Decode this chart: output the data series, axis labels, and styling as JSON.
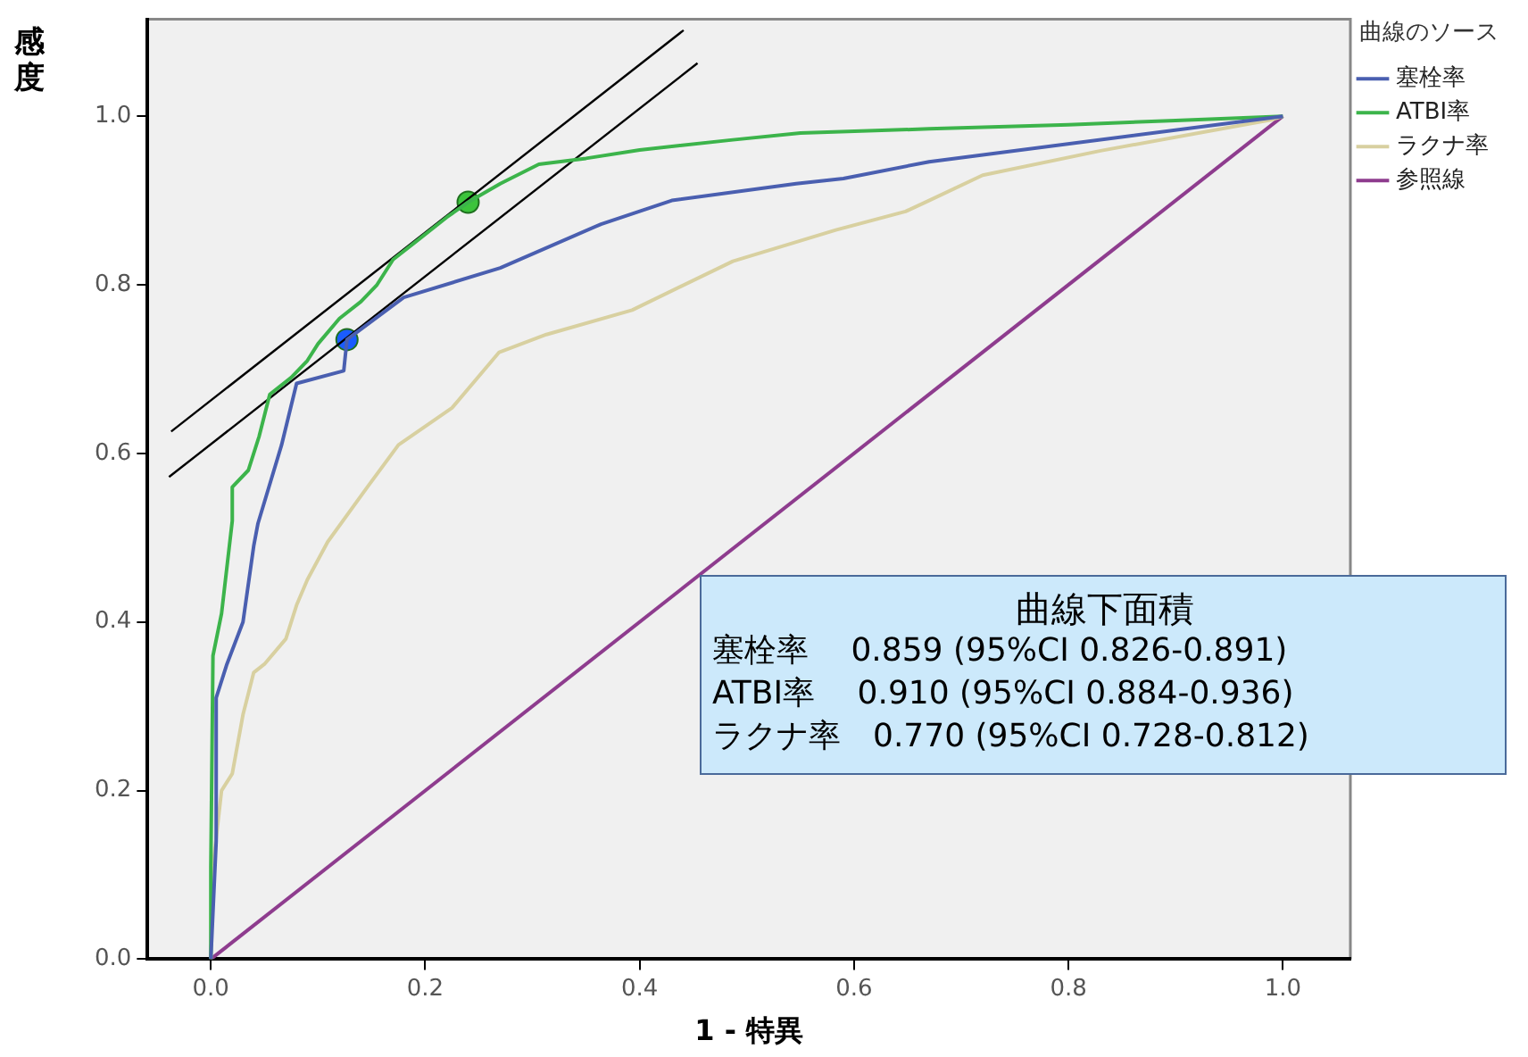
{
  "chart_data": {
    "type": "line",
    "xlabel": "1 - 特異",
    "ylabel": "感度",
    "legend_title": "曲線のソース",
    "legend": "top right",
    "marker": "none",
    "grid": false,
    "xlim": [
      -0.059,
      1.063
    ],
    "ylim": [
      0,
      1.115
    ],
    "xticks": [
      {
        "value": 0,
        "label": "0.0"
      },
      {
        "value": 0.2,
        "label": "0.2"
      },
      {
        "value": 0.4,
        "label": "0.4"
      },
      {
        "value": 0.6,
        "label": "0.6"
      },
      {
        "value": 0.8,
        "label": "0.8"
      },
      {
        "value": 1,
        "label": "1.0"
      }
    ],
    "yticks": [
      {
        "value": 0,
        "label": "0.0"
      },
      {
        "value": 0.2,
        "label": "0.2"
      },
      {
        "value": 0.4,
        "label": "0.4"
      },
      {
        "value": 0.6,
        "label": "0.6"
      },
      {
        "value": 0.8,
        "label": "0.8"
      },
      {
        "value": 1,
        "label": "1.0"
      }
    ],
    "series": [
      {
        "name": "塞栓率",
        "color": "#4a5fb0",
        "x": [
          0,
          0.005,
          0.005,
          0.015,
          0.03,
          0.04,
          0.044,
          0.066,
          0.08,
          0.124,
          0.127,
          0.18,
          0.27,
          0.364,
          0.43,
          0.546,
          0.59,
          0.67,
          1
        ],
        "values": [
          0,
          0.14,
          0.31,
          0.35,
          0.4,
          0.49,
          0.517,
          0.61,
          0.683,
          0.698,
          0.735,
          0.785,
          0.82,
          0.872,
          0.9,
          0.92,
          0.926,
          0.946,
          1
        ]
      },
      {
        "name": "ATBI率",
        "color": "#3cb44b",
        "x": [
          0,
          0,
          0.002,
          0.01,
          0.02,
          0.02,
          0.035,
          0.045,
          0.055,
          0.075,
          0.09,
          0.1,
          0.12,
          0.14,
          0.155,
          0.17,
          0.19,
          0.22,
          0.24,
          0.27,
          0.306,
          0.35,
          0.4,
          0.487,
          0.55,
          0.67,
          0.8,
          0.9,
          1
        ],
        "values": [
          0,
          0.11,
          0.36,
          0.41,
          0.52,
          0.56,
          0.58,
          0.62,
          0.67,
          0.69,
          0.71,
          0.73,
          0.76,
          0.78,
          0.8,
          0.83,
          0.85,
          0.88,
          0.898,
          0.92,
          0.943,
          0.95,
          0.96,
          0.972,
          0.98,
          0.985,
          0.99,
          0.995,
          1
        ]
      },
      {
        "name": "ラクナ率",
        "color": "#d8d0a0",
        "x": [
          0,
          0.002,
          0.01,
          0.02,
          0.03,
          0.04,
          0.05,
          0.07,
          0.08,
          0.09,
          0.109,
          0.146,
          0.175,
          0.225,
          0.269,
          0.313,
          0.393,
          0.487,
          0.583,
          0.648,
          0.67,
          0.72,
          0.83,
          0.99,
          1
        ],
        "values": [
          0,
          0.11,
          0.2,
          0.22,
          0.29,
          0.34,
          0.35,
          0.38,
          0.42,
          0.45,
          0.495,
          0.56,
          0.61,
          0.654,
          0.72,
          0.741,
          0.77,
          0.828,
          0.865,
          0.887,
          0.9,
          0.93,
          0.959,
          0.996,
          1
        ]
      },
      {
        "name": "参照線",
        "color": "#8e3c8e",
        "x": [
          0,
          1
        ],
        "values": [
          0,
          1
        ]
      },
      {
        "color": "#000000",
        "x": [
          -0.037,
          0.441
        ],
        "values": [
          0.626,
          1.102
        ]
      },
      {
        "color": "#000000",
        "x": [
          -0.039,
          0.454
        ],
        "values": [
          0.572,
          1.063
        ]
      },
      {
        "type": "scatter",
        "marker": "circle",
        "color": "#3cc43c",
        "x": [
          0.24
        ],
        "values": [
          0.898
        ]
      },
      {
        "type": "scatter",
        "marker": "circle",
        "color": "#1a5cff",
        "x": [
          0.127
        ],
        "values": [
          0.735
        ]
      }
    ],
    "annotations": [
      "曲線下面積",
      "塞栓率　 0.859 (95%CI 0.826-0.891)",
      "ATBI率　 0.910 (95%CI 0.884-0.936)",
      "ラクナ率　0.770 (95%CI 0.728-0.812)"
    ]
  }
}
